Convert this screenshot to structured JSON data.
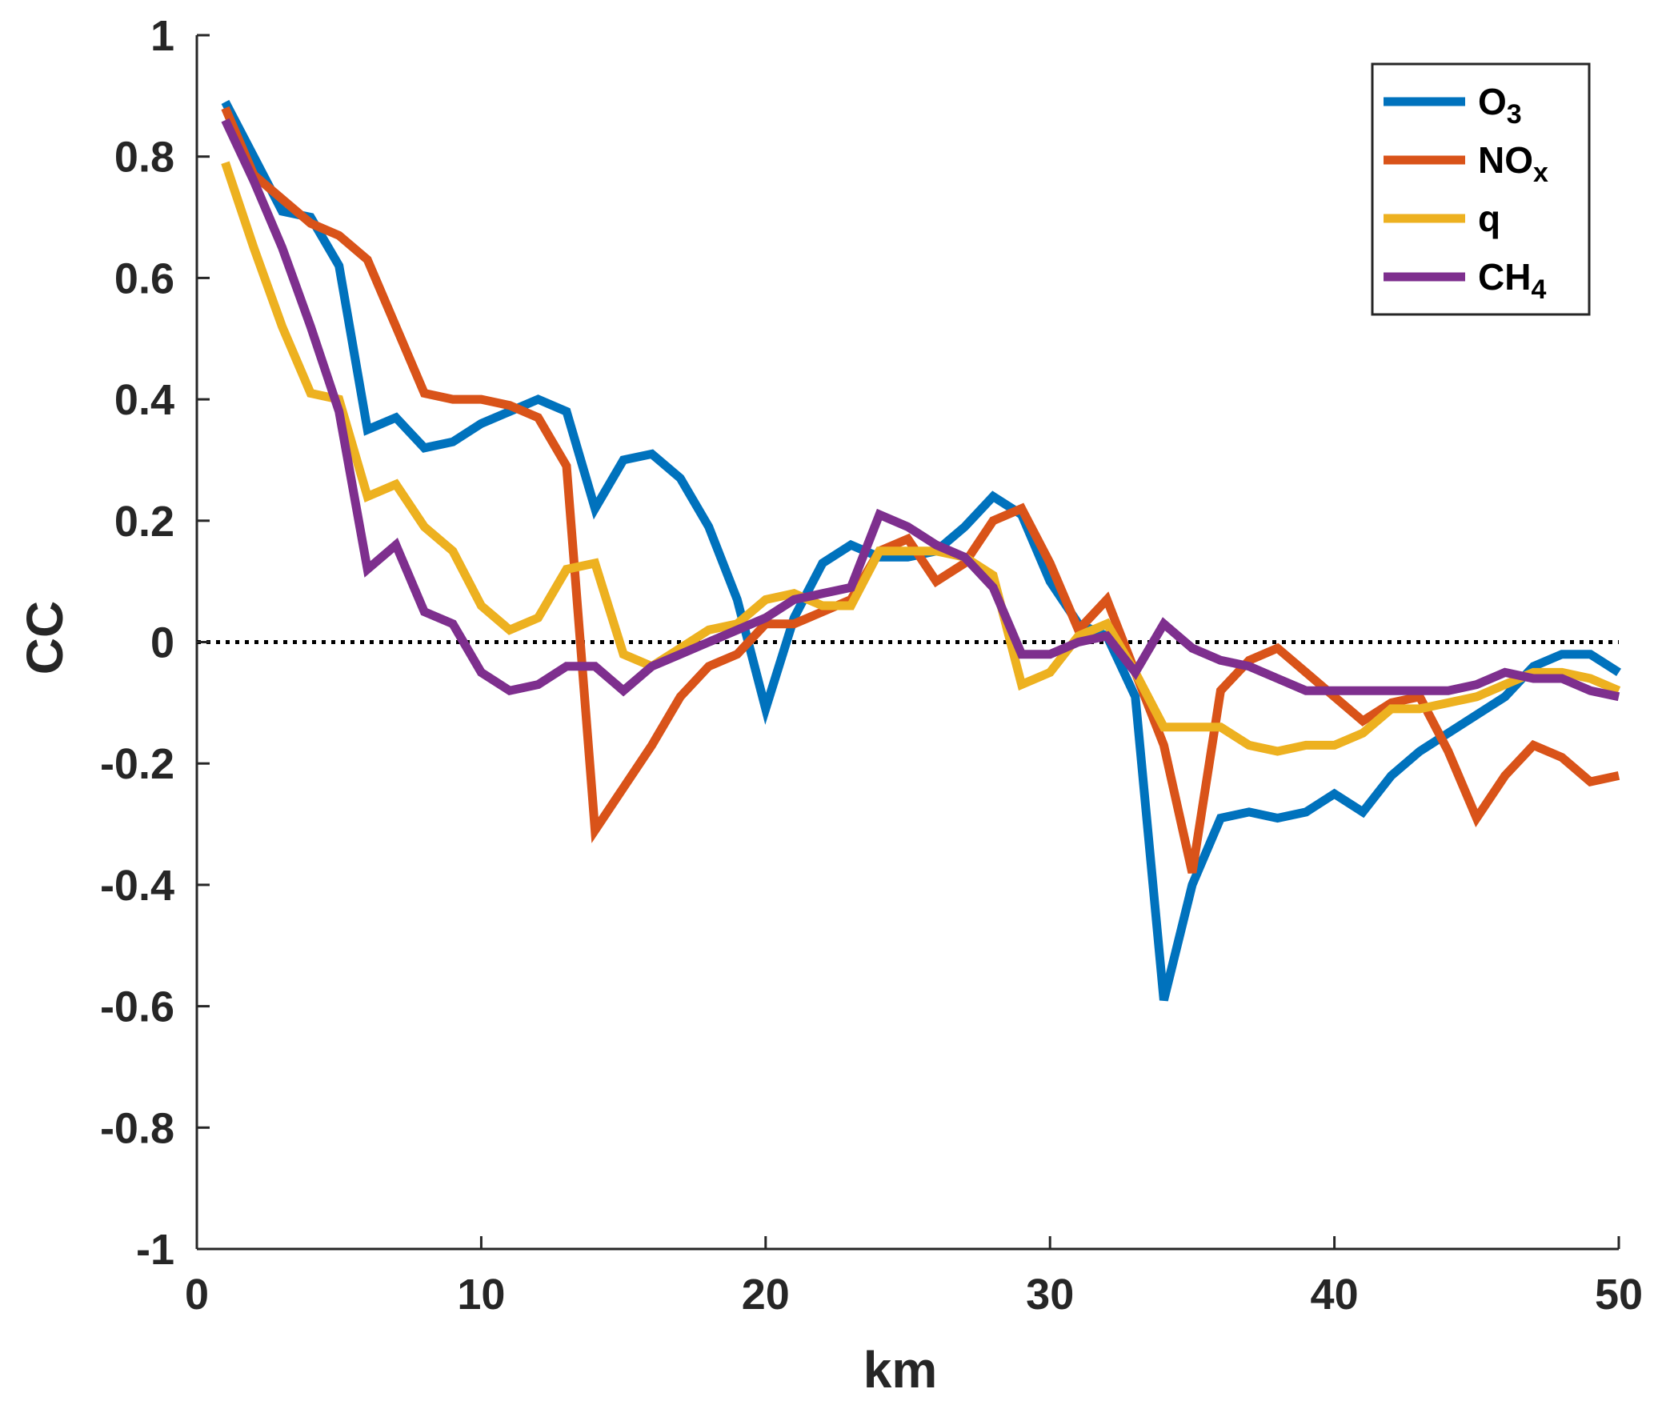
{
  "chart_data": {
    "type": "line",
    "xlabel": "km",
    "ylabel": "CC",
    "xlim": [
      0,
      50
    ],
    "ylim": [
      -1,
      1
    ],
    "xticks": [
      0,
      10,
      20,
      30,
      40,
      50
    ],
    "yticks": [
      1,
      0.8,
      0.6,
      0.4,
      0.2,
      0,
      -0.2,
      -0.4,
      -0.6,
      -0.8,
      -1
    ],
    "ytick_labels": [
      "1",
      "0.8",
      "0.6",
      "0.4",
      "0.2",
      "0",
      "-0.2",
      "-0.4",
      "-0.6",
      "-0.8",
      "-1"
    ],
    "grid": false,
    "legend_position": "top-right",
    "reference_line": {
      "y": 0,
      "style": "dotted",
      "color": "#000000"
    },
    "x": [
      1,
      2,
      3,
      4,
      5,
      6,
      7,
      8,
      9,
      10,
      11,
      12,
      13,
      14,
      15,
      16,
      17,
      18,
      19,
      20,
      21,
      22,
      23,
      24,
      25,
      26,
      27,
      28,
      29,
      30,
      31,
      32,
      33,
      34,
      35,
      36,
      37,
      38,
      39,
      40,
      41,
      42,
      43,
      44,
      45,
      46,
      47,
      48,
      49,
      50
    ],
    "series": [
      {
        "name": "O3",
        "label_main": "O",
        "label_sub": "3",
        "color": "#0072BD",
        "values": [
          0.89,
          0.8,
          0.71,
          0.7,
          0.62,
          0.35,
          0.37,
          0.32,
          0.33,
          0.36,
          0.38,
          0.4,
          0.38,
          0.22,
          0.3,
          0.31,
          0.27,
          0.19,
          0.07,
          -0.11,
          0.04,
          0.13,
          0.16,
          0.14,
          0.14,
          0.15,
          0.19,
          0.24,
          0.21,
          0.1,
          0.03,
          0.01,
          -0.09,
          -0.59,
          -0.4,
          -0.29,
          -0.28,
          -0.29,
          -0.28,
          -0.25,
          -0.28,
          -0.22,
          -0.18,
          -0.15,
          -0.12,
          -0.09,
          -0.04,
          -0.02,
          -0.02,
          -0.05
        ]
      },
      {
        "name": "NOx",
        "label_main": "NO",
        "label_sub": "x",
        "color": "#D95319",
        "values": [
          0.88,
          0.77,
          0.73,
          0.69,
          0.67,
          0.63,
          0.52,
          0.41,
          0.4,
          0.4,
          0.39,
          0.37,
          0.29,
          -0.31,
          -0.24,
          -0.17,
          -0.09,
          -0.04,
          -0.02,
          0.03,
          0.03,
          0.05,
          0.07,
          0.15,
          0.17,
          0.1,
          0.13,
          0.2,
          0.22,
          0.13,
          0.02,
          0.07,
          -0.05,
          -0.17,
          -0.38,
          -0.08,
          -0.03,
          -0.01,
          -0.05,
          -0.09,
          -0.13,
          -0.1,
          -0.09,
          -0.18,
          -0.29,
          -0.22,
          -0.17,
          -0.19,
          -0.23,
          -0.22
        ]
      },
      {
        "name": "q",
        "label_main": "q",
        "label_sub": "",
        "color": "#EDB120",
        "values": [
          0.79,
          0.65,
          0.52,
          0.41,
          0.4,
          0.24,
          0.26,
          0.19,
          0.15,
          0.06,
          0.02,
          0.04,
          0.12,
          0.13,
          -0.02,
          -0.04,
          -0.01,
          0.02,
          0.03,
          0.07,
          0.08,
          0.06,
          0.06,
          0.15,
          0.15,
          0.15,
          0.14,
          0.11,
          -0.07,
          -0.05,
          0.01,
          0.03,
          -0.05,
          -0.14,
          -0.14,
          -0.14,
          -0.17,
          -0.18,
          -0.17,
          -0.17,
          -0.15,
          -0.11,
          -0.11,
          -0.1,
          -0.09,
          -0.07,
          -0.05,
          -0.05,
          -0.06,
          -0.08
        ]
      },
      {
        "name": "CH4",
        "label_main": "CH",
        "label_sub": "4",
        "color": "#7E2F8E",
        "values": [
          0.86,
          0.76,
          0.65,
          0.52,
          0.38,
          0.12,
          0.16,
          0.05,
          0.03,
          -0.05,
          -0.08,
          -0.07,
          -0.04,
          -0.04,
          -0.08,
          -0.04,
          -0.02,
          0.0,
          0.02,
          0.04,
          0.07,
          0.08,
          0.09,
          0.21,
          0.19,
          0.16,
          0.14,
          0.09,
          -0.02,
          -0.02,
          0.0,
          0.01,
          -0.05,
          0.03,
          -0.01,
          -0.03,
          -0.04,
          -0.06,
          -0.08,
          -0.08,
          -0.08,
          -0.08,
          -0.08,
          -0.08,
          -0.07,
          -0.05,
          -0.06,
          -0.06,
          -0.08,
          -0.09
        ]
      }
    ]
  }
}
